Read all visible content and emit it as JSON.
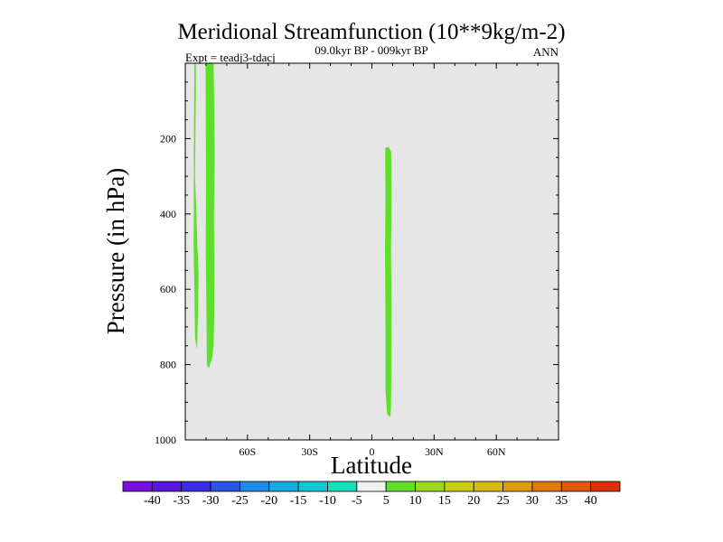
{
  "chart_data": {
    "type": "contour",
    "title": "Meridional Streamfunction (10**9kg/m-2)",
    "subtitle": "09.0kyr BP - 009kyr BP",
    "left_label": "Expt = teadj3-tdacj",
    "right_label": "ANN",
    "xlabel": "Latitude",
    "ylabel": "Pressure (in hPa)",
    "xlim": [
      -90,
      90
    ],
    "ylim": [
      1000,
      0
    ],
    "x_ticks": [
      {
        "value": -60,
        "label": "60S"
      },
      {
        "value": -30,
        "label": "30S"
      },
      {
        "value": 0,
        "label": "0"
      },
      {
        "value": 30,
        "label": "30N"
      },
      {
        "value": 60,
        "label": "60N"
      }
    ],
    "y_ticks": [
      {
        "value": 200,
        "label": "200"
      },
      {
        "value": 400,
        "label": "400"
      },
      {
        "value": 600,
        "label": "600"
      },
      {
        "value": 800,
        "label": "800"
      },
      {
        "value": 1000,
        "label": "1000"
      }
    ],
    "background_fill": "#e6e6e6",
    "regions": [
      {
        "name": "5 to 10",
        "color": "#5ee02a",
        "points": [
          [
            -85.6,
            0
          ],
          [
            -84.9,
            0
          ],
          [
            -84.9,
            80
          ],
          [
            -85.1,
            200
          ],
          [
            -85.3,
            300
          ],
          [
            -84.6,
            400
          ],
          [
            -84.2,
            480
          ],
          [
            -83.6,
            560
          ],
          [
            -83.8,
            640
          ],
          [
            -84.3,
            760
          ],
          [
            -85.3,
            730
          ],
          [
            -85.6,
            600
          ],
          [
            -86.0,
            480
          ],
          [
            -85.8,
            380
          ],
          [
            -85.8,
            200
          ]
        ]
      },
      {
        "name": "5 to 10",
        "color": "#5ee02a",
        "points": [
          [
            -80.2,
            0
          ],
          [
            -76.3,
            0
          ],
          [
            -76.1,
            100
          ],
          [
            -75.8,
            250
          ],
          [
            -76.2,
            400
          ],
          [
            -76.0,
            550
          ],
          [
            -76.0,
            650
          ],
          [
            -76.3,
            750
          ],
          [
            -77.0,
            780
          ],
          [
            -78.6,
            810
          ],
          [
            -79.6,
            800
          ],
          [
            -79.8,
            650
          ],
          [
            -80.1,
            500
          ],
          [
            -80.0,
            300
          ],
          [
            -80.1,
            150
          ]
        ]
      },
      {
        "name": "5 to 10",
        "color": "#5ee02a",
        "points": [
          [
            6.5,
            225
          ],
          [
            8.0,
            222
          ],
          [
            9.3,
            235
          ],
          [
            9.5,
            350
          ],
          [
            9.2,
            500
          ],
          [
            9.5,
            650
          ],
          [
            9.4,
            800
          ],
          [
            9.2,
            920
          ],
          [
            8.8,
            940
          ],
          [
            7.3,
            930
          ],
          [
            6.6,
            870
          ],
          [
            6.6,
            700
          ],
          [
            6.3,
            500
          ],
          [
            6.6,
            350
          ],
          [
            6.4,
            260
          ]
        ]
      }
    ],
    "colorbar": {
      "colors": [
        "#7a0ee0",
        "#5a16df",
        "#3a2de6",
        "#2a55e6",
        "#1f8be8",
        "#17ace0",
        "#10c7d8",
        "#14e0bb",
        "#f0f0f0",
        "#5ee02a",
        "#9bd81c",
        "#c8ce12",
        "#d6b80e",
        "#dc9a0c",
        "#de7c0b",
        "#e0580a",
        "#dd2f09"
      ],
      "labels": [
        "-40",
        "-35",
        "-30",
        "-25",
        "-20",
        "-15",
        "-10",
        "-5",
        "5",
        "10",
        "15",
        "20",
        "25",
        "30",
        "35",
        "40"
      ]
    }
  }
}
